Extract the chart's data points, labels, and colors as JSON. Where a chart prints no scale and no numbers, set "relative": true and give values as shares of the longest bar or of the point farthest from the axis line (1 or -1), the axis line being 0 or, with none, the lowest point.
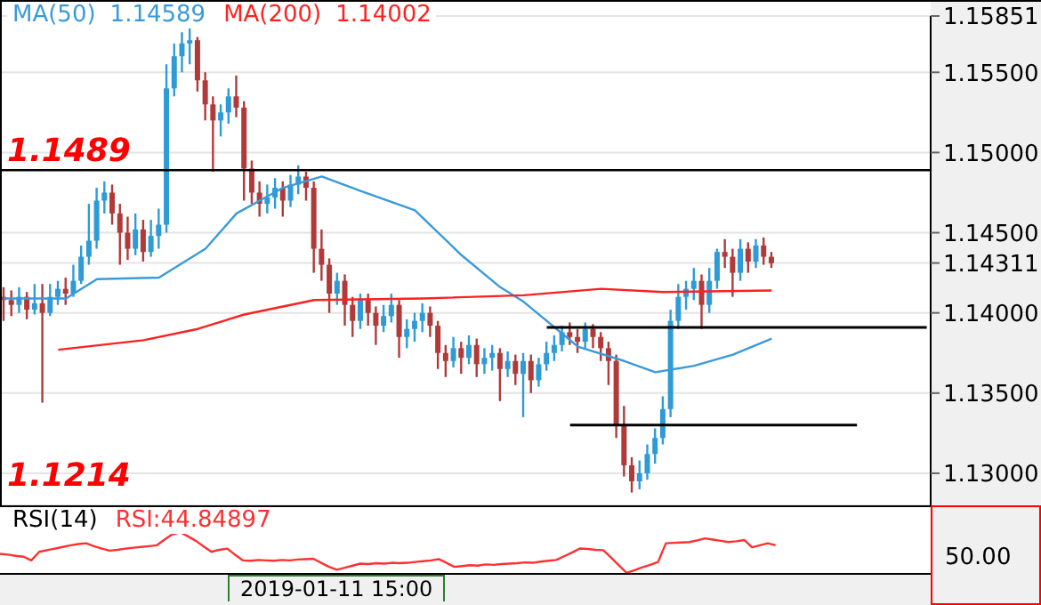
{
  "chart_data": [
    {
      "type": "candlestick",
      "legend": "top left",
      "grid": "y",
      "tick_labels": "y",
      "ylim": [
        1.128,
        1.15851
      ],
      "yticks": [
        {
          "value": 1.13,
          "label": "1.13000"
        },
        {
          "value": 1.135,
          "label": "1.13500"
        },
        {
          "value": 1.14,
          "label": "1.14000"
        },
        {
          "value": 1.14311,
          "label": "1.14311"
        },
        {
          "value": 1.145,
          "label": "1.14500"
        },
        {
          "value": 1.15,
          "label": "1.15000"
        },
        {
          "value": 1.155,
          "label": "1.15500"
        },
        {
          "value": 1.15851,
          "label": "1.15851"
        }
      ],
      "categories": [
        null,
        null,
        null,
        null,
        null,
        null,
        null,
        null,
        null,
        null,
        null,
        null,
        null,
        null,
        null,
        null,
        null,
        null,
        null,
        null,
        null,
        null,
        null,
        null,
        null,
        null,
        null,
        null,
        null,
        null,
        null,
        null,
        null,
        null,
        null,
        null,
        null,
        null,
        null,
        null,
        null,
        null,
        null,
        null,
        null,
        null,
        null,
        null,
        null,
        null,
        null,
        null,
        null,
        null,
        null,
        null,
        null,
        null,
        null,
        null,
        null,
        null,
        null,
        null,
        null,
        null,
        null,
        null,
        null,
        null,
        null,
        null,
        null,
        null,
        null,
        null,
        null,
        null,
        null,
        null,
        null,
        null,
        null,
        null,
        null,
        null,
        null,
        null,
        null,
        null,
        null,
        null,
        null,
        null,
        null,
        null,
        null,
        null,
        null,
        null,
        null,
        null,
        null,
        null,
        null,
        null,
        null,
        null,
        null,
        null,
        null,
        null,
        null,
        null,
        null,
        null,
        null,
        null,
        null,
        null
      ],
      "ohlc": [
        [
          1.141,
          1.1416,
          1.1395,
          1.1408
        ],
        [
          1.1408,
          1.1414,
          1.1398,
          1.1405
        ],
        [
          1.1405,
          1.1416,
          1.14,
          1.141
        ],
        [
          1.141,
          1.1413,
          1.1396,
          1.1402
        ],
        [
          1.1402,
          1.1418,
          1.1399,
          1.1406
        ],
        [
          1.1406,
          1.1418,
          1.1344,
          1.14
        ],
        [
          1.14,
          1.1418,
          1.1398,
          1.141
        ],
        [
          1.141,
          1.142,
          1.1405,
          1.1415
        ],
        [
          1.1415,
          1.1422,
          1.1405,
          1.1412
        ],
        [
          1.1412,
          1.143,
          1.141,
          1.142
        ],
        [
          1.142,
          1.1442,
          1.1418,
          1.1435
        ],
        [
          1.1435,
          1.1468,
          1.143,
          1.1445
        ],
        [
          1.1445,
          1.1478,
          1.144,
          1.147
        ],
        [
          1.147,
          1.1482,
          1.1462,
          1.1475
        ],
        [
          1.1475,
          1.148,
          1.1455,
          1.1462
        ],
        [
          1.1462,
          1.1468,
          1.143,
          1.145
        ],
        [
          1.145,
          1.146,
          1.1433,
          1.144
        ],
        [
          1.144,
          1.1462,
          1.1436,
          1.1452
        ],
        [
          1.1452,
          1.1458,
          1.1432,
          1.1438
        ],
        [
          1.1438,
          1.1458,
          1.1435,
          1.1448
        ],
        [
          1.1448,
          1.1465,
          1.144,
          1.1455
        ],
        [
          1.1455,
          1.1555,
          1.145,
          1.154
        ],
        [
          1.154,
          1.1568,
          1.1535,
          1.156
        ],
        [
          1.156,
          1.1575,
          1.155,
          1.1568
        ],
        [
          1.1568,
          1.1578,
          1.1555,
          1.157
        ],
        [
          1.157,
          1.1572,
          1.1538,
          1.1545
        ],
        [
          1.1545,
          1.155,
          1.152,
          1.153
        ],
        [
          1.153,
          1.1535,
          1.1488,
          1.152
        ],
        [
          1.152,
          1.153,
          1.151,
          1.1525
        ],
        [
          1.1525,
          1.154,
          1.1518,
          1.1535
        ],
        [
          1.1535,
          1.1548,
          1.1522,
          1.1528
        ],
        [
          1.1528,
          1.1532,
          1.147,
          1.149
        ],
        [
          1.149,
          1.1495,
          1.1468,
          1.1475
        ],
        [
          1.1475,
          1.1482,
          1.146,
          1.1468
        ],
        [
          1.1468,
          1.148,
          1.1462,
          1.1472
        ],
        [
          1.1472,
          1.1484,
          1.1465,
          1.1478
        ],
        [
          1.1478,
          1.1482,
          1.146,
          1.147
        ],
        [
          1.147,
          1.1486,
          1.1466,
          1.148
        ],
        [
          1.148,
          1.1492,
          1.1474,
          1.1485
        ],
        [
          1.1485,
          1.1488,
          1.147,
          1.1478
        ],
        [
          1.1478,
          1.1482,
          1.1425,
          1.144
        ],
        [
          1.144,
          1.1452,
          1.142,
          1.143
        ],
        [
          1.143,
          1.1434,
          1.14,
          1.1412
        ],
        [
          1.1412,
          1.1425,
          1.1405,
          1.142
        ],
        [
          1.142,
          1.1424,
          1.1392,
          1.1405
        ],
        [
          1.1405,
          1.141,
          1.1385,
          1.1395
        ],
        [
          1.1395,
          1.1412,
          1.139,
          1.1408
        ],
        [
          1.1408,
          1.1412,
          1.1392,
          1.14
        ],
        [
          1.14,
          1.1404,
          1.138,
          1.1392
        ],
        [
          1.1392,
          1.1405,
          1.1388,
          1.1398
        ],
        [
          1.1398,
          1.1412,
          1.1394,
          1.1405
        ],
        [
          1.1405,
          1.1408,
          1.1372,
          1.1385
        ],
        [
          1.1385,
          1.1396,
          1.1378,
          1.139
        ],
        [
          1.139,
          1.14,
          1.1382,
          1.1395
        ],
        [
          1.1395,
          1.1406,
          1.1388,
          1.14
        ],
        [
          1.14,
          1.1404,
          1.1385,
          1.1392
        ],
        [
          1.1392,
          1.1395,
          1.1365,
          1.1375
        ],
        [
          1.1375,
          1.138,
          1.136,
          1.137
        ],
        [
          1.137,
          1.1385,
          1.1366,
          1.1378
        ],
        [
          1.1378,
          1.1382,
          1.1362,
          1.1372
        ],
        [
          1.1372,
          1.1386,
          1.1368,
          1.138
        ],
        [
          1.138,
          1.1384,
          1.136,
          1.1368
        ],
        [
          1.1368,
          1.1378,
          1.1362,
          1.1372
        ],
        [
          1.1372,
          1.138,
          1.1364,
          1.1375
        ],
        [
          1.1375,
          1.1378,
          1.1345,
          1.1365
        ],
        [
          1.1365,
          1.1376,
          1.136,
          1.137
        ],
        [
          1.137,
          1.1374,
          1.1355,
          1.1362
        ],
        [
          1.1362,
          1.1375,
          1.1335,
          1.137
        ],
        [
          1.137,
          1.1374,
          1.135,
          1.1358
        ],
        [
          1.1358,
          1.1372,
          1.1354,
          1.1368
        ],
        [
          1.1368,
          1.1382,
          1.1364,
          1.1375
        ],
        [
          1.1375,
          1.1386,
          1.137,
          1.138
        ],
        [
          1.138,
          1.1392,
          1.1376,
          1.1388
        ],
        [
          1.1388,
          1.1394,
          1.138,
          1.1385
        ],
        [
          1.1385,
          1.139,
          1.1375,
          1.1382
        ],
        [
          1.1382,
          1.1394,
          1.1378,
          1.139
        ],
        [
          1.139,
          1.1393,
          1.1378,
          1.1385
        ],
        [
          1.1385,
          1.1388,
          1.137,
          1.1378
        ],
        [
          1.1378,
          1.1382,
          1.1355,
          1.137
        ],
        [
          1.137,
          1.1374,
          1.1322,
          1.133
        ],
        [
          1.133,
          1.1342,
          1.1298,
          1.1305
        ],
        [
          1.1305,
          1.131,
          1.1288,
          1.1295
        ],
        [
          1.1295,
          1.1308,
          1.129,
          1.13
        ],
        [
          1.13,
          1.1318,
          1.1296,
          1.1312
        ],
        [
          1.1312,
          1.1328,
          1.1306,
          1.1322
        ],
        [
          1.1322,
          1.1348,
          1.1318,
          1.134
        ],
        [
          1.134,
          1.1402,
          1.1335,
          1.1395
        ],
        [
          1.1395,
          1.1418,
          1.139,
          1.141
        ],
        [
          1.141,
          1.142,
          1.1402,
          1.1415
        ],
        [
          1.1415,
          1.1428,
          1.1408,
          1.142
        ],
        [
          1.142,
          1.1424,
          1.139,
          1.1405
        ],
        [
          1.1405,
          1.1428,
          1.14,
          1.142
        ],
        [
          1.142,
          1.144,
          1.1415,
          1.1438
        ],
        [
          1.1438,
          1.1446,
          1.1428,
          1.1435
        ],
        [
          1.1435,
          1.144,
          1.141,
          1.1425
        ],
        [
          1.1425,
          1.1446,
          1.142,
          1.144
        ],
        [
          1.144,
          1.1444,
          1.1425,
          1.1432
        ],
        [
          1.1432,
          1.1446,
          1.1428,
          1.1442
        ],
        [
          1.1442,
          1.1447,
          1.143,
          1.1435
        ],
        [
          1.1435,
          1.1438,
          1.1428,
          1.1431
        ],
        null,
        null,
        null,
        null,
        null,
        null,
        null,
        null,
        null,
        null,
        null,
        null,
        null,
        null,
        null,
        null,
        null,
        null,
        null,
        null
      ],
      "colors": [
        "#b03a3a",
        "#b03a3a",
        "#2e9bd6",
        "#b03a3a",
        "#2e9bd6",
        "#b03a3a",
        "#2e9bd6",
        "#2e9bd6",
        "#b03a3a",
        "#2e9bd6",
        "#2e9bd6",
        "#2e9bd6",
        "#2e9bd6",
        "#2e9bd6",
        "#b03a3a",
        "#b03a3a",
        "#b03a3a",
        "#2e9bd6",
        "#b03a3a",
        "#2e9bd6",
        "#2e9bd6",
        "#2e9bd6",
        "#2e9bd6",
        "#2e9bd6",
        "#2e9bd6",
        "#b03a3a",
        "#b03a3a",
        "#b03a3a",
        "#2e9bd6",
        "#2e9bd6",
        "#b03a3a",
        "#b03a3a",
        "#b03a3a",
        "#b03a3a",
        "#2e9bd6",
        "#2e9bd6",
        "#b03a3a",
        "#2e9bd6",
        "#2e9bd6",
        "#b03a3a",
        "#b03a3a",
        "#b03a3a",
        "#b03a3a",
        "#2e9bd6",
        "#b03a3a",
        "#b03a3a",
        "#2e9bd6",
        "#b03a3a",
        "#b03a3a",
        "#2e9bd6",
        "#2e9bd6",
        "#b03a3a",
        "#2e9bd6",
        "#2e9bd6",
        "#2e9bd6",
        "#b03a3a",
        "#b03a3a",
        "#b03a3a",
        "#2e9bd6",
        "#b03a3a",
        "#2e9bd6",
        "#b03a3a",
        "#2e9bd6",
        "#2e9bd6",
        "#b03a3a",
        "#2e9bd6",
        "#b03a3a",
        "#2e9bd6",
        "#b03a3a",
        "#2e9bd6",
        "#2e9bd6",
        "#2e9bd6",
        "#2e9bd6",
        "#b03a3a",
        "#b03a3a",
        "#2e9bd6",
        "#b03a3a",
        "#b03a3a",
        "#b03a3a",
        "#b03a3a",
        "#b03a3a",
        "#b03a3a",
        "#2e9bd6",
        "#2e9bd6",
        "#2e9bd6",
        "#2e9bd6",
        "#2e9bd6",
        "#2e9bd6",
        "#2e9bd6",
        "#2e9bd6",
        "#b03a3a",
        "#2e9bd6",
        "#2e9bd6",
        "#b03a3a",
        "#b03a3a",
        "#2e9bd6",
        "#b03a3a",
        "#2e9bd6",
        "#b03a3a",
        "#b03a3a",
        null,
        null,
        null,
        null,
        null,
        null,
        null,
        null,
        null,
        null,
        null,
        null,
        null,
        null,
        null,
        null,
        null,
        null,
        null,
        null
      ],
      "series": [
        {
          "type": "line",
          "name": "MA(50)",
          "color": "#3a9ad9",
          "values": [
            1.1409,
            null,
            null,
            null,
            null,
            null,
            null,
            null,
            1.1409,
            null,
            null,
            null,
            1.1421,
            null,
            null,
            null,
            null,
            null,
            null,
            null,
            1.1422,
            null,
            null,
            null,
            null,
            null,
            1.144,
            null,
            null,
            null,
            1.1462,
            null,
            null,
            null,
            null,
            null,
            1.1478,
            null,
            null,
            null,
            null,
            1.1485,
            null,
            null,
            null,
            null,
            1.1476,
            null,
            null,
            null,
            null,
            null,
            null,
            1.1464,
            null,
            null,
            null,
            null,
            null,
            1.1436,
            null,
            null,
            null,
            null,
            1.1416,
            null,
            null,
            1.1407,
            null,
            null,
            null,
            null,
            null,
            null,
            1.1379,
            null,
            null,
            null,
            null,
            null,
            1.137,
            null,
            null,
            null,
            1.1363,
            null,
            null,
            null,
            null,
            1.1367,
            null,
            null,
            null,
            null,
            1.1374,
            null,
            null,
            null,
            null,
            1.1384,
            null,
            null,
            null,
            null,
            null,
            null,
            null,
            null,
            null,
            null,
            null,
            null,
            null,
            null,
            null,
            null,
            null,
            null,
            null,
            null
          ]
        },
        {
          "type": "line",
          "name": "MA(200)",
          "color": "#ff2020",
          "values": [
            null,
            null,
            null,
            null,
            null,
            null,
            null,
            1.1377,
            null,
            null,
            null,
            null,
            null,
            null,
            null,
            null,
            null,
            null,
            1.1383,
            null,
            null,
            null,
            null,
            null,
            null,
            1.139,
            null,
            null,
            null,
            null,
            null,
            1.1399,
            null,
            null,
            null,
            null,
            null,
            null,
            null,
            null,
            1.1408,
            null,
            null,
            null,
            null,
            null,
            null,
            null,
            null,
            null,
            null,
            null,
            null,
            null,
            1.1409,
            null,
            null,
            null,
            null,
            null,
            null,
            null,
            null,
            null,
            null,
            null,
            null,
            1.1411,
            null,
            null,
            null,
            null,
            null,
            null,
            null,
            null,
            null,
            1.1415,
            null,
            null,
            null,
            null,
            null,
            null,
            null,
            1.1413,
            null,
            null,
            null,
            null,
            null,
            null,
            null,
            null,
            null,
            null,
            null,
            null,
            null,
            1.1414,
            null,
            null,
            null,
            null,
            null,
            null,
            null,
            null,
            null,
            null,
            null,
            null,
            null,
            null,
            null,
            null,
            null,
            null,
            null,
            null
          ]
        },
        {
          "type": "line",
          "color": "#000000",
          "values": [
            null,
            null,
            null,
            null,
            null,
            null,
            null,
            null,
            null,
            null,
            null,
            null,
            null,
            null,
            null,
            null,
            null,
            null,
            null,
            null,
            null,
            null,
            null,
            null,
            null,
            null,
            null,
            null,
            null,
            null,
            null,
            null,
            null,
            null,
            null,
            null,
            null,
            null,
            null,
            null,
            null,
            null,
            null,
            null,
            null,
            null,
            null,
            null,
            null,
            null,
            null,
            null,
            null,
            null,
            null,
            null,
            null,
            null,
            null,
            null,
            null,
            null,
            null,
            null,
            null,
            null,
            null,
            null,
            null,
            null,
            1.1391,
            null,
            null,
            null,
            null,
            null,
            null,
            null,
            null,
            null,
            null,
            null,
            null,
            null,
            null,
            null,
            null,
            null,
            null,
            null,
            null,
            null,
            null,
            null,
            null,
            null,
            null,
            null,
            null,
            null,
            null,
            null,
            null,
            null,
            null,
            null,
            null,
            null,
            null,
            null,
            null,
            null,
            null,
            null,
            null,
            null,
            null,
            null,
            null,
            1.1391
          ]
        },
        {
          "type": "line",
          "color": "#000000",
          "values": [
            null,
            null,
            null,
            null,
            null,
            null,
            null,
            null,
            null,
            null,
            null,
            null,
            null,
            null,
            null,
            null,
            null,
            null,
            null,
            null,
            null,
            null,
            null,
            null,
            null,
            null,
            null,
            null,
            null,
            null,
            null,
            null,
            null,
            null,
            null,
            null,
            null,
            null,
            null,
            null,
            null,
            null,
            null,
            null,
            null,
            null,
            null,
            null,
            null,
            null,
            null,
            null,
            null,
            null,
            null,
            null,
            null,
            null,
            null,
            null,
            null,
            null,
            null,
            null,
            null,
            null,
            null,
            null,
            null,
            null,
            null,
            null,
            null,
            1.133,
            null,
            null,
            null,
            null,
            null,
            null,
            null,
            null,
            null,
            null,
            null,
            null,
            null,
            null,
            null,
            null,
            null,
            null,
            null,
            null,
            null,
            null,
            null,
            null,
            null,
            null,
            null,
            null,
            null,
            null,
            null,
            null,
            null,
            null,
            null,
            null,
            1.133,
            null,
            null,
            null,
            null,
            null,
            null,
            null,
            null,
            null
          ]
        }
      ],
      "ref_lines": [
        {
          "axis": "y",
          "value": 1.1489,
          "label": "1.1489",
          "color": "#000000"
        }
      ],
      "annotations": [
        "1.14589",
        "1.14002",
        "1.1214"
      ]
    },
    {
      "type": "line",
      "title": "RSI(14)",
      "relative": true,
      "legend": "top left",
      "tick_labels": false,
      "categories": [
        null,
        null,
        null,
        null,
        null,
        null,
        null,
        null,
        null,
        null,
        null,
        null,
        null,
        null,
        null,
        null,
        null,
        null,
        null,
        null,
        null,
        null,
        null,
        null,
        null,
        null,
        null,
        null,
        null,
        null,
        null,
        null,
        null,
        null,
        null,
        null,
        null,
        null,
        null,
        null,
        null,
        null,
        null,
        null,
        null,
        null,
        null,
        null,
        null,
        null,
        null,
        null,
        null,
        null,
        null,
        null,
        null,
        null,
        null,
        null,
        null,
        null,
        null,
        null,
        null,
        null,
        null,
        null,
        null,
        null,
        null,
        null,
        null,
        null,
        null,
        null,
        null,
        null,
        null,
        null,
        null,
        null,
        null,
        null,
        null,
        null,
        null,
        null,
        null,
        null,
        null,
        null,
        null,
        null,
        null,
        null,
        null,
        null,
        null,
        null
      ],
      "series": [
        {
          "name": "RSI:44.84897",
          "color": "#ff3030",
          "values": [
            0.47,
            0.45,
            0.42,
            0.4,
            0.31,
            0.52,
            0.56,
            0.6,
            0.64,
            0.68,
            0.71,
            0.73,
            0.66,
            0.6,
            0.55,
            0.57,
            0.6,
            0.62,
            0.64,
            0.66,
            0.68,
            0.82,
            0.95,
            1,
            0.9,
            0.79,
            0.65,
            0.52,
            0.57,
            0.6,
            0.45,
            0.31,
            0.3,
            0.32,
            0.31,
            0.3,
            0.32,
            0.31,
            0.33,
            0.34,
            0.35,
            0.25,
            0.15,
            0.08,
            0.13,
            0.18,
            0.23,
            0.22,
            0.24,
            0.23,
            0.25,
            0.24,
            0.25,
            0.27,
            0.29,
            0.31,
            0.34,
            0.25,
            0.15,
            0.17,
            0.19,
            0.18,
            0.21,
            0.2,
            0.22,
            0.23,
            0.24,
            0.26,
            0.25,
            0.28,
            0.3,
            0.32,
            0.41,
            0.5,
            0.6,
            0.59,
            0.57,
            0.56,
            0.38,
            0.19,
            0,
            0.07,
            0.14,
            0.2,
            0.27,
            0.73,
            0.74,
            0.75,
            0.76,
            0.8,
            0.85,
            0.82,
            0.79,
            0.76,
            0.78,
            0.81,
            0.63,
            0.68,
            0.73,
            0.68
          ]
        }
      ],
      "annotations": [
        "50.00",
        "2019-01-11 15:00"
      ]
    }
  ]
}
